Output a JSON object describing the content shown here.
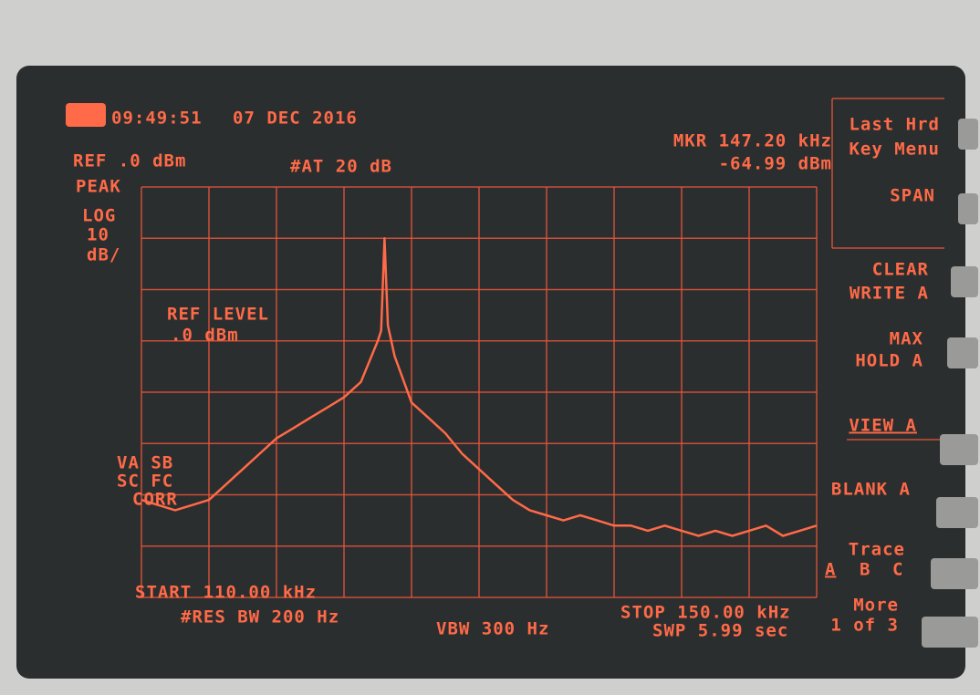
{
  "header": {
    "time": "09:49:51",
    "date": "07 DEC 2016",
    "reference": "REF .0 dBm",
    "attenuation": "#AT 20 dB",
    "marker_frequency": "MKR 147.20 kHz",
    "marker_level": "-64.99 dBm"
  },
  "scale_labels": [
    "PEAK",
    "LOG",
    "10",
    "dB/"
  ],
  "ref_level": [
    "REF LEVEL",
    ".0 dBm"
  ],
  "correction_labels": [
    "VA SB",
    "SC FC",
    "CORR"
  ],
  "softkeys": {
    "last_hrd": "Last Hrd",
    "key_menu": "Key Menu",
    "span": "SPAN",
    "clear": "CLEAR",
    "write_a": "WRITE A",
    "max": "MAX",
    "hold_a": "HOLD A",
    "view_a": "VIEW A",
    "blank_a": "BLANK A",
    "trace": "Trace",
    "trace_a": "A",
    "trace_b": "B",
    "trace_c": "C",
    "more": "More",
    "page": "1 of 3"
  },
  "footer": {
    "start": "START 110.00 kHz",
    "res_bw": "#RES BW 200 Hz",
    "vbw": "VBW 300 Hz",
    "stop": "STOP 150.00 kHz",
    "sweep": "SWP 5.99 sec"
  },
  "chart_data": {
    "type": "line",
    "color": "#ff6a48",
    "x": [
      110,
      111,
      112,
      113,
      114,
      115,
      116,
      117,
      118,
      119,
      120,
      121,
      122,
      123,
      124,
      124.2,
      124.4,
      124.6,
      125,
      126,
      127,
      128,
      129,
      130,
      131,
      132,
      133,
      134,
      135,
      136,
      137,
      138,
      139,
      140,
      141,
      142,
      143,
      144,
      145,
      146,
      147,
      148,
      149,
      150
    ],
    "values": [
      -61,
      -62,
      -63,
      -62,
      -61,
      -58,
      -55,
      -52,
      -49,
      -47,
      -45,
      -43,
      -41,
      -38,
      -30,
      -28,
      -10,
      -27,
      -33,
      -42,
      -45,
      -48,
      -52,
      -55,
      -58,
      -61,
      -63,
      -64,
      -65,
      -64,
      -65,
      -66,
      -66,
      -67,
      -66,
      -67,
      -68,
      -67,
      -68,
      -67,
      -66,
      -68,
      -67,
      -66
    ],
    "xlim": [
      110,
      150
    ],
    "ylim": [
      -80,
      0
    ]
  }
}
